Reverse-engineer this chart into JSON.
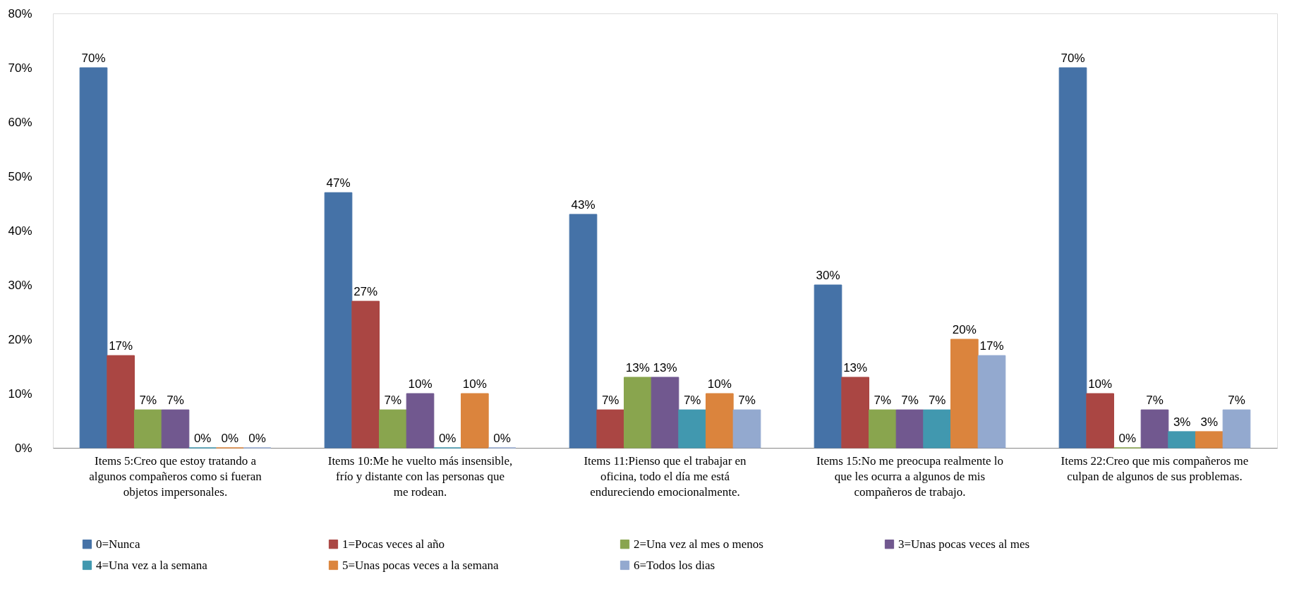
{
  "chart_data": {
    "type": "bar",
    "categories": [
      "Items 5:Creo que estoy tratando a algunos compañeros como si fueran objetos impersonales.",
      "Items 10:Me he vuelto más insensible, frío y distante con las personas que me rodean.",
      "Items 11:Pienso que el trabajar en oficina, todo el día me está endureciendo emocionalmente.",
      "Items 15:No me preocupa realmente lo que les ocurra a algunos de mis compañeros de trabajo.",
      "Items 22:Creo que mis compañeros me culpan de algunos de sus problemas."
    ],
    "series": [
      {
        "name": "0=Nunca",
        "color": "#4572a7",
        "values": [
          70,
          47,
          43,
          30,
          70
        ],
        "value_labels": [
          "70%",
          "47%",
          "43%",
          "30%",
          "70%"
        ]
      },
      {
        "name": "1=Pocas veces al año",
        "color": "#aa4643",
        "values": [
          17,
          27,
          7,
          13,
          10
        ],
        "value_labels": [
          "17%",
          "27%",
          "7%",
          "13%",
          "10%"
        ]
      },
      {
        "name": "2=Una vez al mes o menos",
        "color": "#89a54e",
        "values": [
          7,
          7,
          13,
          7,
          0
        ],
        "value_labels": [
          "7%",
          "7%",
          "13%",
          "7%",
          "0%"
        ]
      },
      {
        "name": "3=Unas pocas veces al mes",
        "color": "#71588f",
        "values": [
          7,
          10,
          13,
          7,
          7
        ],
        "value_labels": [
          "7%",
          "10%",
          "13%",
          "7%",
          "7%"
        ]
      },
      {
        "name": "4=Una vez a la semana",
        "color": "#4198af",
        "values": [
          0,
          0,
          7,
          7,
          3
        ],
        "value_labels": [
          "0%",
          "0%",
          "7%",
          "7%",
          "3%"
        ]
      },
      {
        "name": "5=Unas pocas veces a la semana",
        "color": "#db843d",
        "values": [
          0,
          10,
          10,
          20,
          3
        ],
        "value_labels": [
          "0%",
          "10%",
          "10%",
          "20%",
          "3%"
        ]
      },
      {
        "name": "6=Todos los dias",
        "color": "#93a9cf",
        "values": [
          0,
          0,
          7,
          17,
          7
        ],
        "value_labels": [
          "0%",
          "0%",
          "7%",
          "17%",
          "7%"
        ]
      }
    ],
    "ylim": [
      0,
      80
    ],
    "yticks": [
      {
        "value": 0,
        "label": "0%"
      },
      {
        "value": 10,
        "label": "10%"
      },
      {
        "value": 20,
        "label": "20%"
      },
      {
        "value": 30,
        "label": "30%"
      },
      {
        "value": 40,
        "label": "40%"
      },
      {
        "value": 50,
        "label": "50%"
      },
      {
        "value": 60,
        "label": "60%"
      },
      {
        "value": 70,
        "label": "70%"
      },
      {
        "value": 80,
        "label": "80%"
      }
    ],
    "grid": false,
    "legend": "bottom"
  }
}
